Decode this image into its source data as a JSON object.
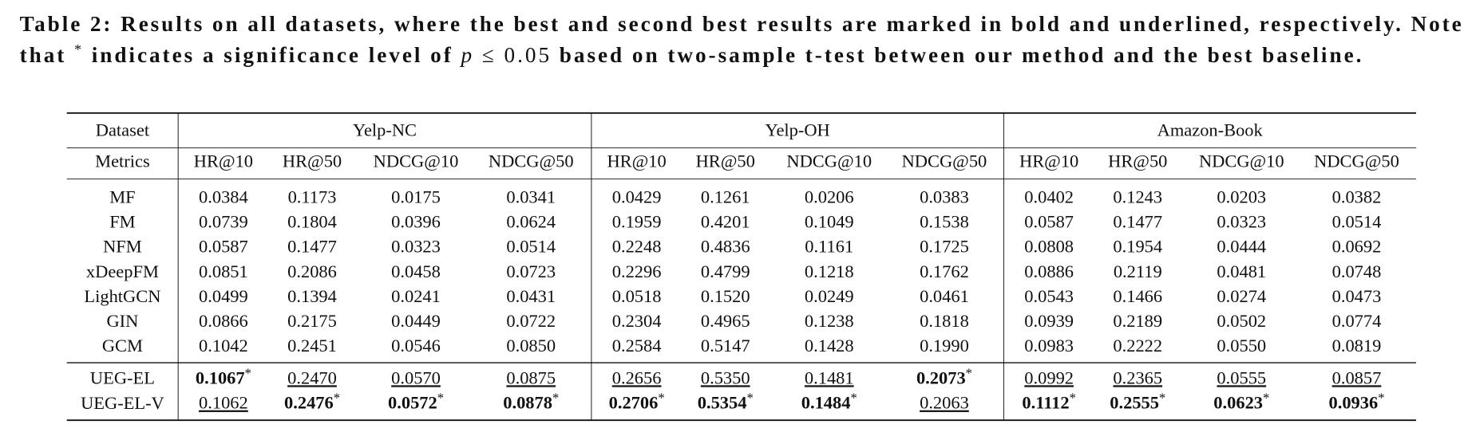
{
  "caption": {
    "lines": [
      [
        {
          "text": "Table 2: Results on all datasets, where the best and second best results are marked in bold and underlined, respectively. Note"
        }
      ],
      [
        {
          "text": "that "
        },
        {
          "text": "*",
          "style": "sup"
        },
        {
          "text": " indicates a significance level of "
        },
        {
          "text": "p",
          "style": "math-italic"
        },
        {
          "text": " ≤ 0.05",
          "style": "math"
        },
        {
          "text": " based on two-sample t-test between our method and the best baseline."
        }
      ]
    ]
  },
  "table": {
    "header": {
      "dataset": "Dataset",
      "metrics_label": "Metrics",
      "groups": [
        "Yelp-NC",
        "Yelp-OH",
        "Amazon-Book"
      ],
      "metrics": [
        "HR@10",
        "HR@50",
        "NDCG@10",
        "NDCG@50",
        "HR@10",
        "HR@50",
        "NDCG@10",
        "NDCG@50",
        "HR@10",
        "HR@50",
        "NDCG@10",
        "NDCG@50"
      ]
    },
    "baselines": [
      {
        "name": "MF",
        "cells": [
          "0.0384",
          "0.1173",
          "0.0175",
          "0.0341",
          "0.0429",
          "0.1261",
          "0.0206",
          "0.0383",
          "0.0402",
          "0.1243",
          "0.0203",
          "0.0382"
        ]
      },
      {
        "name": "FM",
        "cells": [
          "0.0739",
          "0.1804",
          "0.0396",
          "0.0624",
          "0.1959",
          "0.4201",
          "0.1049",
          "0.1538",
          "0.0587",
          "0.1477",
          "0.0323",
          "0.0514"
        ]
      },
      {
        "name": "NFM",
        "cells": [
          "0.0587",
          "0.1477",
          "0.0323",
          "0.0514",
          "0.2248",
          "0.4836",
          "0.1161",
          "0.1725",
          "0.0808",
          "0.1954",
          "0.0444",
          "0.0692"
        ]
      },
      {
        "name": "xDeepFM",
        "cells": [
          "0.0851",
          "0.2086",
          "0.0458",
          "0.0723",
          "0.2296",
          "0.4799",
          "0.1218",
          "0.1762",
          "0.0886",
          "0.2119",
          "0.0481",
          "0.0748"
        ]
      },
      {
        "name": "LightGCN",
        "cells": [
          "0.0499",
          "0.1394",
          "0.0241",
          "0.0431",
          "0.0518",
          "0.1520",
          "0.0249",
          "0.0461",
          "0.0543",
          "0.1466",
          "0.0274",
          "0.0473"
        ]
      },
      {
        "name": "GIN",
        "cells": [
          "0.0866",
          "0.2175",
          "0.0449",
          "0.0722",
          "0.2304",
          "0.4965",
          "0.1238",
          "0.1818",
          "0.0939",
          "0.2189",
          "0.0502",
          "0.0774"
        ]
      },
      {
        "name": "GCM",
        "cells": [
          "0.1042",
          "0.2451",
          "0.0546",
          "0.0850",
          "0.2584",
          "0.5147",
          "0.1428",
          "0.1990",
          "0.0983",
          "0.2222",
          "0.0550",
          "0.0819"
        ]
      }
    ],
    "ours": [
      {
        "name": "UEG-EL",
        "cells": [
          {
            "text": "0.1067",
            "style": "bold",
            "sup": "*"
          },
          {
            "text": "0.2470",
            "style": "underline"
          },
          {
            "text": "0.0570",
            "style": "underline"
          },
          {
            "text": "0.0875",
            "style": "underline"
          },
          {
            "text": "0.2656",
            "style": "underline"
          },
          {
            "text": "0.5350",
            "style": "underline"
          },
          {
            "text": "0.1481",
            "style": "underline"
          },
          {
            "text": "0.2073",
            "style": "bold",
            "sup": "*"
          },
          {
            "text": "0.0992",
            "style": "underline"
          },
          {
            "text": "0.2365",
            "style": "underline"
          },
          {
            "text": "0.0555",
            "style": "underline"
          },
          {
            "text": "0.0857",
            "style": "underline"
          }
        ]
      },
      {
        "name": "UEG-EL-V",
        "cells": [
          {
            "text": "0.1062",
            "style": "underline"
          },
          {
            "text": "0.2476",
            "style": "bold",
            "sup": "*"
          },
          {
            "text": "0.0572",
            "style": "bold",
            "sup": "*"
          },
          {
            "text": "0.0878",
            "style": "bold",
            "sup": "*"
          },
          {
            "text": "0.2706",
            "style": "bold",
            "sup": "*"
          },
          {
            "text": "0.5354",
            "style": "bold",
            "sup": "*"
          },
          {
            "text": "0.1484",
            "style": "bold",
            "sup": "*"
          },
          {
            "text": "0.2063",
            "style": "underline"
          },
          {
            "text": "0.1112",
            "style": "bold",
            "sup": "*"
          },
          {
            "text": "0.2555",
            "style": "bold",
            "sup": "*"
          },
          {
            "text": "0.0623",
            "style": "bold",
            "sup": "*"
          },
          {
            "text": "0.0936",
            "style": "bold",
            "sup": "*"
          }
        ]
      }
    ]
  }
}
